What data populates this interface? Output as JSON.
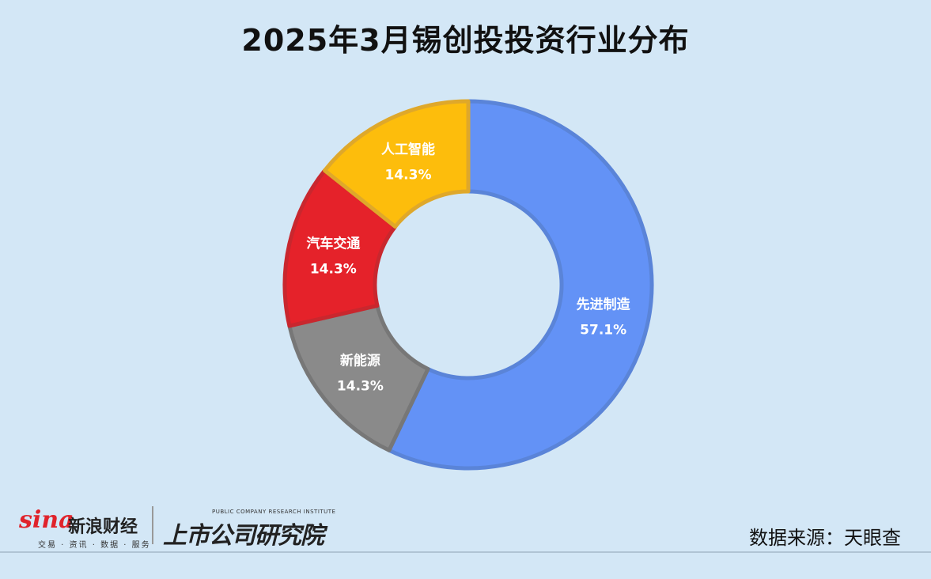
{
  "title": "2025年3月锡创投投资行业分布",
  "chart_data": {
    "type": "pie",
    "style": "donut",
    "categories": [
      "先进制造",
      "新能源",
      "汽车交通",
      "人工智能"
    ],
    "values": [
      57.1,
      14.3,
      14.3,
      14.3
    ],
    "labels": [
      "57.1%",
      "14.3%",
      "14.3%",
      "14.3%"
    ],
    "colors": [
      "#6392f6",
      "#8a8a8a",
      "#e5222a",
      "#fdbd0c"
    ],
    "stroke_colors": [
      "#5a84d8",
      "#777777",
      "#c9272e",
      "#dfa82a"
    ],
    "legend": "none"
  },
  "footer": {
    "sina_word": "sina",
    "sina_cn": "新浪财经",
    "sina_sub": "交易 · 资讯 · 数据 · 服务",
    "institute_en": "PUBLIC COMPANY RESEARCH INSTITUTE",
    "institute_cn": "上市公司研究院",
    "source": "数据来源：天眼查"
  }
}
